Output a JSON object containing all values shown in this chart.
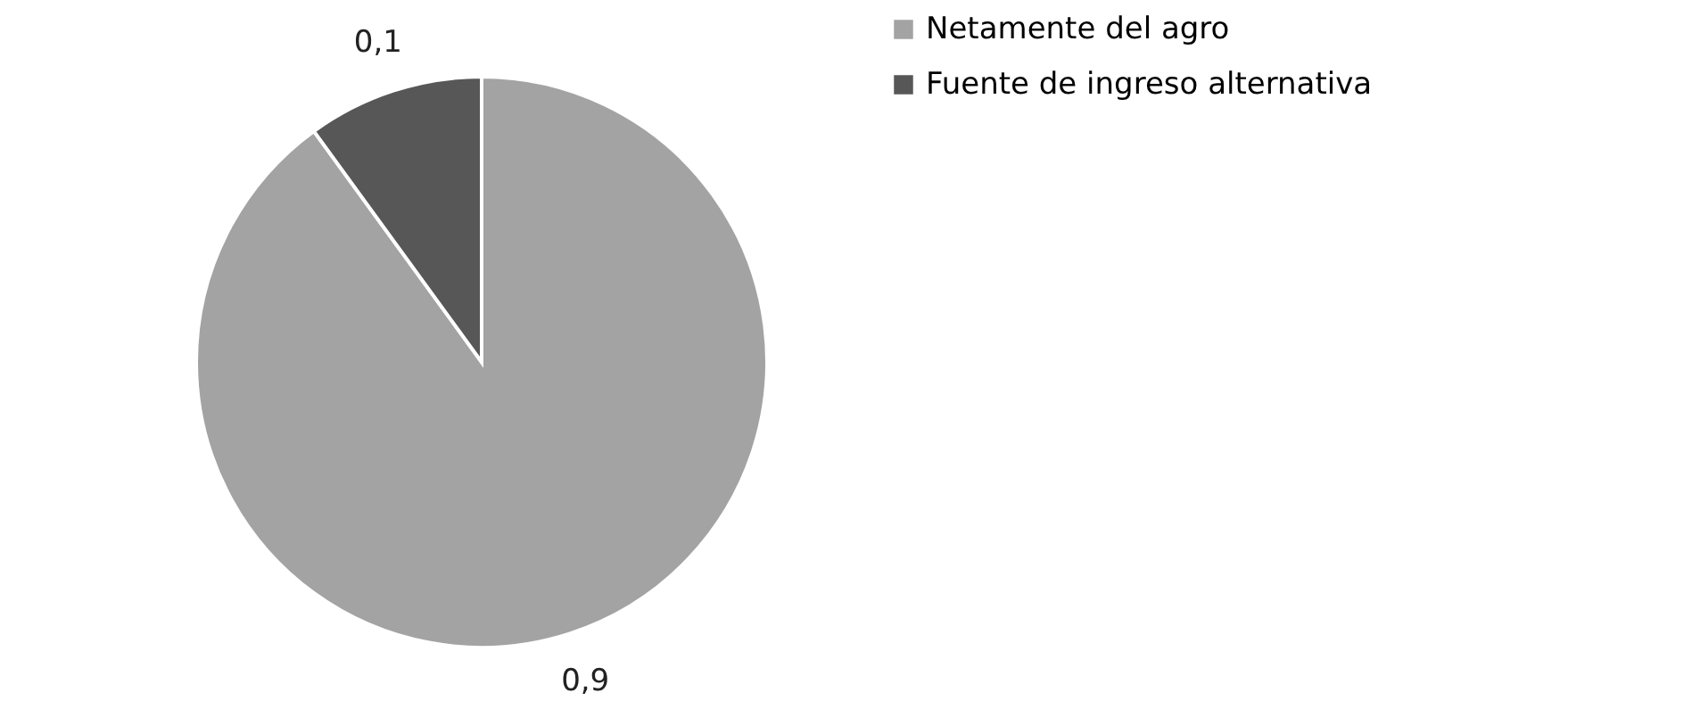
{
  "chart_data": {
    "type": "pie",
    "categories": [
      "Netamente del agro",
      "Fuente de ingreso alternativa"
    ],
    "values": [
      0.9,
      0.1
    ],
    "colors": [
      "#a3a3a3",
      "#575757"
    ],
    "value_labels": [
      "0,9",
      "0,1"
    ],
    "legend": "right"
  }
}
